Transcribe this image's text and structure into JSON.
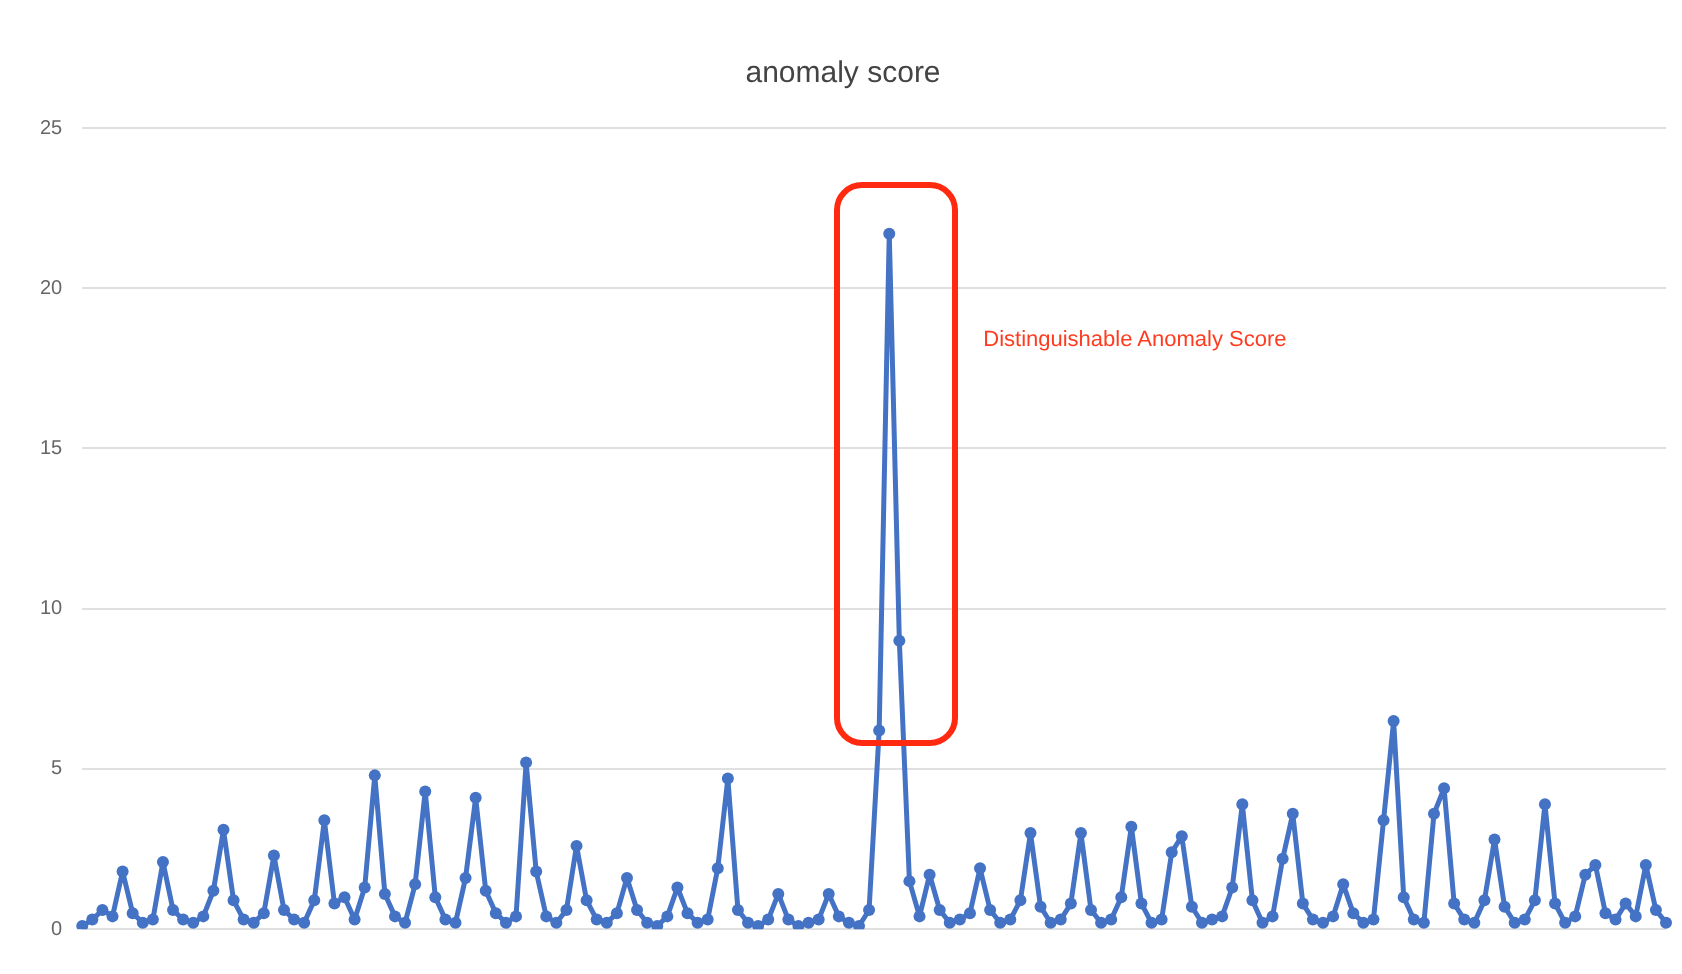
{
  "chart_data": {
    "type": "line",
    "title": "anomaly score",
    "categories": [
      null,
      null,
      null,
      null,
      null,
      null,
      null,
      null,
      null,
      null,
      null,
      null,
      null,
      null,
      null,
      null,
      null,
      null,
      null,
      null,
      null,
      null,
      null,
      null,
      null,
      null,
      null,
      null,
      null,
      null,
      null,
      null,
      null,
      null,
      null,
      null,
      null,
      null,
      null,
      null,
      null,
      null,
      null,
      null,
      null,
      null,
      null,
      null,
      null,
      null,
      null,
      null,
      null,
      null,
      null,
      null,
      null,
      null,
      null,
      null,
      null,
      null,
      null,
      null,
      null,
      null,
      null,
      null,
      null,
      null,
      null,
      null,
      null,
      null,
      null,
      null,
      null,
      null,
      null,
      null,
      null,
      null,
      null,
      null,
      null,
      null,
      null,
      null,
      null,
      null,
      null,
      null,
      null,
      null,
      null,
      null,
      null,
      null,
      null,
      null,
      null,
      null,
      null,
      null,
      null,
      null,
      null,
      null,
      null,
      null,
      null,
      null,
      null,
      null,
      null,
      null,
      null,
      null,
      null,
      null,
      null,
      null,
      null,
      null,
      null,
      null,
      null,
      null,
      null,
      null,
      null,
      null,
      null,
      null,
      null,
      null,
      null,
      null,
      null,
      null,
      null,
      null,
      null,
      null,
      null,
      null,
      null,
      null,
      null,
      null,
      null,
      null,
      null,
      null,
      null,
      null,
      null,
      null
    ],
    "series": [
      {
        "color": "#4472c4",
        "values": [
          0.1,
          0.3,
          0.6,
          0.4,
          1.8,
          0.5,
          0.2,
          0.3,
          2.1,
          0.6,
          0.3,
          0.2,
          0.4,
          1.2,
          3.1,
          0.9,
          0.3,
          0.2,
          0.5,
          2.3,
          0.6,
          0.3,
          0.2,
          0.9,
          3.4,
          0.8,
          1.0,
          0.3,
          1.3,
          4.8,
          1.1,
          0.4,
          0.2,
          1.4,
          4.3,
          1.0,
          0.3,
          0.2,
          1.6,
          4.1,
          1.2,
          0.5,
          0.2,
          0.4,
          5.2,
          1.8,
          0.4,
          0.2,
          0.6,
          2.6,
          0.9,
          0.3,
          0.2,
          0.5,
          1.6,
          0.6,
          0.2,
          0.1,
          0.4,
          1.3,
          0.5,
          0.2,
          0.3,
          1.9,
          4.7,
          0.6,
          0.2,
          0.1,
          0.3,
          1.1,
          0.3,
          0.1,
          0.2,
          0.3,
          1.1,
          0.4,
          0.2,
          0.1,
          0.6,
          6.2,
          21.7,
          9.0,
          1.5,
          0.4,
          1.7,
          0.6,
          0.2,
          0.3,
          0.5,
          1.9,
          0.6,
          0.2,
          0.3,
          0.9,
          3.0,
          0.7,
          0.2,
          0.3,
          0.8,
          3.0,
          0.6,
          0.2,
          0.3,
          1.0,
          3.2,
          0.8,
          0.2,
          0.3,
          2.4,
          2.9,
          0.7,
          0.2,
          0.3,
          0.4,
          1.3,
          3.9,
          0.9,
          0.2,
          0.4,
          2.2,
          3.6,
          0.8,
          0.3,
          0.2,
          0.4,
          1.4,
          0.5,
          0.2,
          0.3,
          3.4,
          6.5,
          1.0,
          0.3,
          0.2,
          3.6,
          4.4,
          0.8,
          0.3,
          0.2,
          0.9,
          2.8,
          0.7,
          0.2,
          0.3,
          0.9,
          3.9,
          0.8,
          0.2,
          0.4,
          1.7,
          2.0,
          0.5,
          0.3,
          0.8,
          0.4,
          2.0,
          0.6,
          0.2
        ]
      }
    ],
    "ylim": [
      0,
      25
    ],
    "yticks": [
      0,
      5,
      10,
      15,
      20,
      25
    ],
    "grid": "y",
    "legend": false,
    "marker": "circle",
    "line_style": "solid",
    "annotations": [
      "Distinguishable Anomaly Score"
    ]
  }
}
